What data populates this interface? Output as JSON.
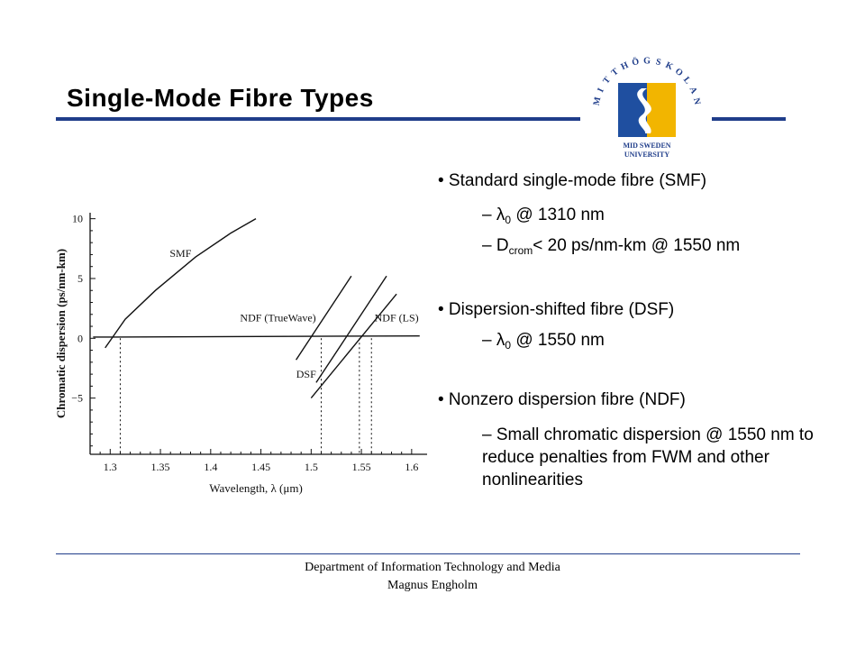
{
  "slide": {
    "title": "Single-Mode Fibre Types"
  },
  "logo": {
    "ring_letters": [
      "M",
      "I",
      "T",
      "T",
      "H",
      "Ö",
      "G",
      "S",
      "K",
      "O",
      "L",
      "A",
      "N"
    ],
    "line1": "MID SWEDEN",
    "line2": "UNIVERSITY",
    "colors": {
      "yellow": "#f2b500",
      "blue": "#1f4fa0"
    }
  },
  "bullets": {
    "smf": "• Standard single-mode fibre (SMF)",
    "smf_sub1_prefix": "– λ",
    "smf_sub1_sub": "0",
    "smf_sub1_suffix": " @ 1310 nm",
    "smf_sub2_prefix": "– D",
    "smf_sub2_sub": "crom",
    "smf_sub2_suffix": "< 20 ps/nm-km @ 1550 nm",
    "dsf": "• Dispersion-shifted fibre (DSF)",
    "dsf_sub1_prefix": "– λ",
    "dsf_sub1_sub": "0",
    "dsf_sub1_suffix": " @ 1550 nm",
    "ndf": "• Nonzero dispersion fibre (NDF)",
    "ndf_sub1": "– Small chromatic dispersion @ 1550 nm to reduce penalties from FWM and other nonlinearities"
  },
  "footer": {
    "line1": "Department of Information Technology and Media",
    "line2": "Magnus Engholm"
  },
  "colors": {
    "accent_rule": "#1f3d8a"
  },
  "chart_data": {
    "type": "line",
    "xlabel": "Wavelength, λ (μm)",
    "ylabel": "Chromatic dispersion (ps/nm-km)",
    "xlim": [
      1.28,
      1.61
    ],
    "ylim": [
      -9.7,
      10.5
    ],
    "xticks": [
      1.3,
      1.35,
      1.4,
      1.45,
      1.5,
      1.55,
      1.6
    ],
    "xtick_labels": [
      "1.3",
      "1.35",
      "1.4",
      "1.45",
      "1.5",
      "1.55",
      "1.6"
    ],
    "yticks": [
      10,
      5,
      0,
      -5
    ],
    "ytick_labels": [
      "10",
      "5",
      "0",
      "−5"
    ],
    "grid": false,
    "series": [
      {
        "name": "SMF",
        "x": [
          1.295,
          1.315,
          1.345,
          1.385,
          1.42,
          1.445
        ],
        "y": [
          -0.8,
          1.6,
          4.0,
          6.8,
          8.8,
          10.0
        ]
      },
      {
        "name": "NDF (TrueWave)",
        "x": [
          1.485,
          1.54
        ],
        "y": [
          -1.8,
          5.2
        ]
      },
      {
        "name": "DSF",
        "x": [
          1.505,
          1.575
        ],
        "y": [
          -3.7,
          5.2
        ]
      },
      {
        "name": "NDF (LS)",
        "x": [
          1.5,
          1.585
        ],
        "y": [
          -5.0,
          3.7
        ]
      }
    ],
    "zero_line": {
      "x": [
        1.283,
        1.608
      ],
      "y": [
        0.1,
        0.2
      ]
    },
    "zero_crossings": [
      1.31,
      1.51,
      1.548,
      1.56
    ],
    "annotations": [
      {
        "text": "SMF",
        "x": 1.37,
        "y": 6.8
      },
      {
        "text": "NDF (TrueWave)",
        "x": 1.467,
        "y": 1.4
      },
      {
        "text": "DSF",
        "x": 1.495,
        "y": -3.3
      },
      {
        "text": "NDF (LS)",
        "x": 1.585,
        "y": 1.4
      }
    ]
  }
}
